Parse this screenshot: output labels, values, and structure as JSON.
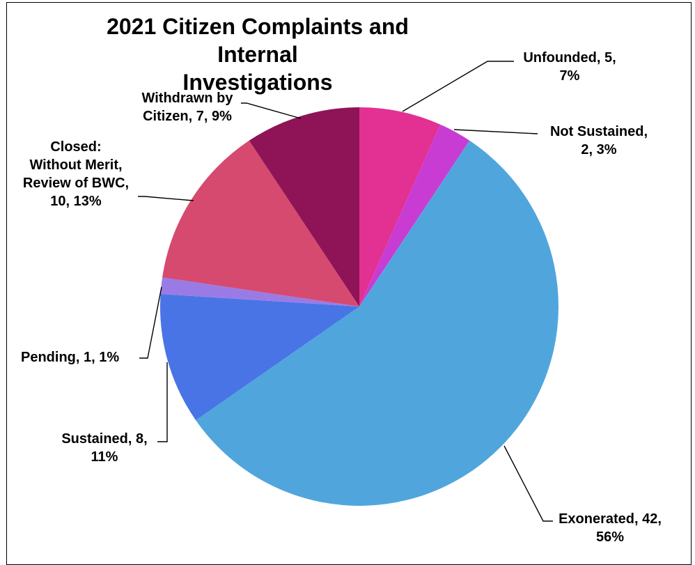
{
  "chart_data": {
    "type": "pie",
    "title_lines": [
      "2021 Citizen Complaints and Internal",
      "Investigations"
    ],
    "slices": [
      {
        "name": "Unfounded",
        "value": 5,
        "percent": "7%",
        "color": "#E23192",
        "label_lines": [
          "Unfounded, 5,",
          "7%"
        ]
      },
      {
        "name": "Not Sustained",
        "value": 2,
        "percent": "3%",
        "color": "#C83CD4",
        "label_lines": [
          "Not Sustained,",
          "2, 3%"
        ]
      },
      {
        "name": "Exonerated",
        "value": 42,
        "percent": "56%",
        "color": "#50A6DC",
        "label_lines": [
          "Exonerated, 42,",
          "56%"
        ]
      },
      {
        "name": "Sustained",
        "value": 8,
        "percent": "11%",
        "color": "#4974E6",
        "label_lines": [
          "Sustained, 8,",
          "11%"
        ]
      },
      {
        "name": "Pending",
        "value": 1,
        "percent": "1%",
        "color": "#9A7BE6",
        "label_lines": [
          "Pending, 1, 1%"
        ]
      },
      {
        "name": "Closed: Without Merit, Review of BWC",
        "value": 10,
        "percent": "13%",
        "color": "#D64A70",
        "label_lines": [
          "Closed:",
          "Without Merit,",
          "Review of BWC,",
          "10, 13%"
        ]
      },
      {
        "name": "Withdrawn by Citizen",
        "value": 7,
        "percent": "9%",
        "color": "#8E1457",
        "label_lines": [
          "Withdrawn by",
          "Citizen, 7, 9%"
        ]
      }
    ]
  }
}
